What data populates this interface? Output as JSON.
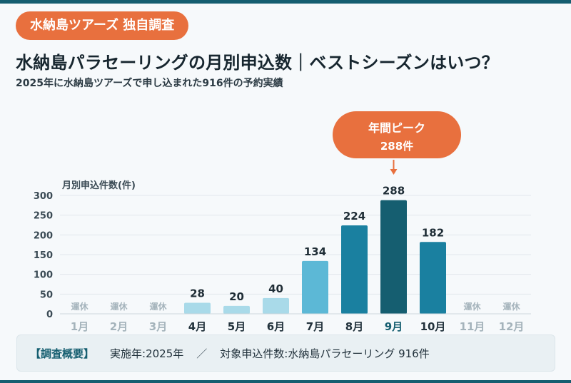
{
  "badge": "水納島ツアーズ 独自調査",
  "title": "水納島パラセーリングの月別申込数｜ベストシーズンはいつ？",
  "subtitle": "2025年に水納島ツアーズで申し込まれた916件の予約実績",
  "callout": {
    "line1": "年間ピーク",
    "line2": "288件"
  },
  "summary": {
    "tag": "【調査概要】",
    "item1": "実施年:2025年",
    "separator": "／",
    "item2": "対象申込件数:水納島パラセーリング 916件"
  },
  "colors": {
    "accent": "#e8703e",
    "peak": "#155e70",
    "high": "#1a80a0",
    "mid": "#5cb8d6",
    "low": "#a9dae9",
    "closed_text": "#a4b3bb"
  },
  "chart_data": {
    "type": "bar",
    "ylabel": "月別申込件数(件)",
    "ylim": [
      0,
      300
    ],
    "yticks": [
      0,
      50,
      100,
      150,
      200,
      250,
      300
    ],
    "grid": true,
    "categories": [
      "1月",
      "2月",
      "3月",
      "4月",
      "5月",
      "6月",
      "7月",
      "8月",
      "9月",
      "10月",
      "11月",
      "12月"
    ],
    "values": [
      null,
      null,
      null,
      28,
      20,
      40,
      134,
      224,
      288,
      182,
      null,
      null
    ],
    "closed_label": "運休",
    "bar_tiers": [
      "closed",
      "closed",
      "closed",
      "low",
      "low",
      "low",
      "mid",
      "high",
      "peak",
      "high",
      "closed",
      "closed"
    ]
  }
}
